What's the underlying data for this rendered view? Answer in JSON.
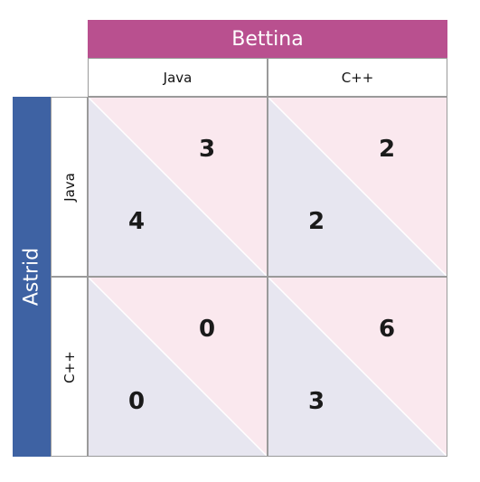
{
  "players": {
    "column": "Bettina",
    "row": "Astrid"
  },
  "strategies": {
    "column": [
      "Java",
      "C++"
    ],
    "row": [
      "Java",
      "C++"
    ]
  },
  "payoffs": [
    [
      {
        "astrid": "4",
        "bettina": "3"
      },
      {
        "astrid": "2",
        "bettina": "2"
      }
    ],
    [
      {
        "astrid": "0",
        "bettina": "0"
      },
      {
        "astrid": "3",
        "bettina": "6"
      }
    ]
  ],
  "colors": {
    "column_banner": "#b9508f",
    "row_banner": "#3e62a3",
    "astrid_triangle": "#e7e6f0",
    "bettina_triangle": "#fae8ee",
    "grid": "#9a9a9a"
  }
}
